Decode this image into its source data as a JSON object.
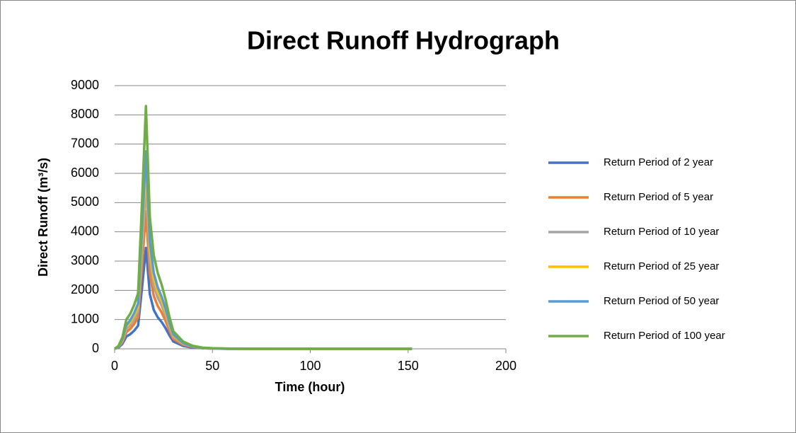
{
  "chart_data": {
    "type": "line",
    "title": "Direct Runoff Hydrograph",
    "xlabel": "Time (hour)",
    "ylabel": "Direct Runoff (m³/s)",
    "x": [
      0,
      2,
      4,
      6,
      8,
      10,
      12,
      14,
      16,
      18,
      20,
      22,
      24,
      26,
      28,
      30,
      35,
      40,
      45,
      50,
      60,
      80,
      100,
      120,
      140,
      152
    ],
    "series": [
      {
        "name": "Return Period of 2 year",
        "color": "#4472c4",
        "values": [
          0,
          40,
          170,
          420,
          500,
          620,
          790,
          2080,
          3450,
          1870,
          1330,
          1080,
          920,
          710,
          460,
          250,
          100,
          40,
          20,
          10,
          0,
          0,
          0,
          0,
          0,
          0
        ]
      },
      {
        "name": "Return Period of 5 year",
        "color": "#ed7d31",
        "values": [
          0,
          60,
          230,
          570,
          680,
          850,
          1080,
          2830,
          4700,
          2550,
          1810,
          1470,
          1250,
          960,
          620,
          340,
          140,
          60,
          20,
          10,
          0,
          0,
          0,
          0,
          0,
          0
        ]
      },
      {
        "name": "Return Period of 10 year",
        "color": "#a5a5a5",
        "values": [
          0,
          70,
          270,
          680,
          810,
          1010,
          1280,
          3380,
          5600,
          3040,
          2160,
          1760,
          1490,
          1150,
          740,
          410,
          170,
          70,
          30,
          10,
          0,
          0,
          0,
          0,
          0,
          0
        ]
      },
      {
        "name": "Return Period of 25 year",
        "color": "#ffc000",
        "values": [
          0,
          80,
          300,
          750,
          900,
          1130,
          1430,
          3750,
          6200,
          3380,
          2400,
          1950,
          1650,
          1280,
          830,
          450,
          190,
          80,
          30,
          15,
          0,
          0,
          0,
          0,
          0,
          0
        ]
      },
      {
        "name": "Return Period of 50 year",
        "color": "#5b9bd5",
        "values": [
          0,
          80,
          330,
          810,
          980,
          1220,
          1550,
          4060,
          6750,
          3660,
          2600,
          2110,
          1790,
          1380,
          890,
          490,
          200,
          80,
          30,
          15,
          0,
          0,
          0,
          0,
          0,
          0
        ]
      },
      {
        "name": "Return Period of 100 year",
        "color": "#70ad47",
        "values": [
          0,
          100,
          400,
          1000,
          1200,
          1500,
          1900,
          5000,
          8300,
          4500,
          3200,
          2600,
          2200,
          1700,
          1100,
          600,
          250,
          100,
          40,
          20,
          5,
          0,
          0,
          0,
          0,
          0
        ]
      }
    ],
    "xlim": [
      0,
      200
    ],
    "xticks": [
      0,
      50,
      100,
      150,
      200
    ],
    "ylim": [
      0,
      9000
    ],
    "yticks": [
      0,
      1000,
      2000,
      3000,
      4000,
      5000,
      6000,
      7000,
      8000,
      9000
    ],
    "grid": true,
    "legend": "right"
  }
}
